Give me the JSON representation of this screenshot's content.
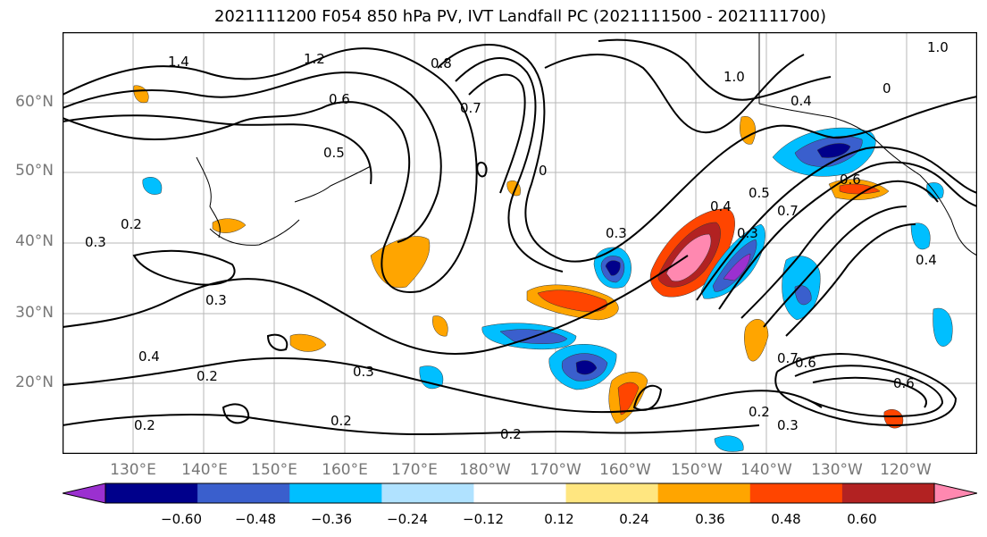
{
  "title": "2021111200 F054 850 hPa PV, IVT Landfall PC (2021111500 - 2021111700)",
  "lat_labels": [
    "60°N",
    "50°N",
    "40°N",
    "30°N",
    "20°N"
  ],
  "lon_labels": [
    "130°E",
    "140°E",
    "150°E",
    "160°E",
    "170°E",
    "180°W",
    "170°W",
    "160°W",
    "150°W",
    "140°W",
    "130°W",
    "120°W"
  ],
  "colorbar": {
    "tick_labels": [
      "−0.60",
      "−0.48",
      "−0.36",
      "−0.24",
      "−0.12",
      "0.12",
      "0.24",
      "0.36",
      "0.48",
      "0.60"
    ],
    "colors": [
      "#9b30d0",
      "#00008b",
      "#3a5fcd",
      "#00bfff",
      "#b0e2ff",
      "#ffffff",
      "#ffe680",
      "#ffa500",
      "#ff4500",
      "#b22222",
      "#ff88b0"
    ]
  },
  "contour_labels": [
    "1.4",
    "1.2",
    "0.8",
    "0.6",
    "0.7",
    "1.0",
    "0.5",
    "0.3",
    "0.2",
    "0.4",
    "0.3",
    "0.2",
    "0.3",
    "0.2",
    "0.2",
    "0.3",
    "0.4",
    "0.5",
    "0.7",
    "0.6",
    "0.2",
    "0.2",
    "0.3",
    "0.6",
    "1.0",
    "0.4",
    "0",
    "0",
    "0.4",
    "0.7",
    "0.6",
    "0.3"
  ]
}
